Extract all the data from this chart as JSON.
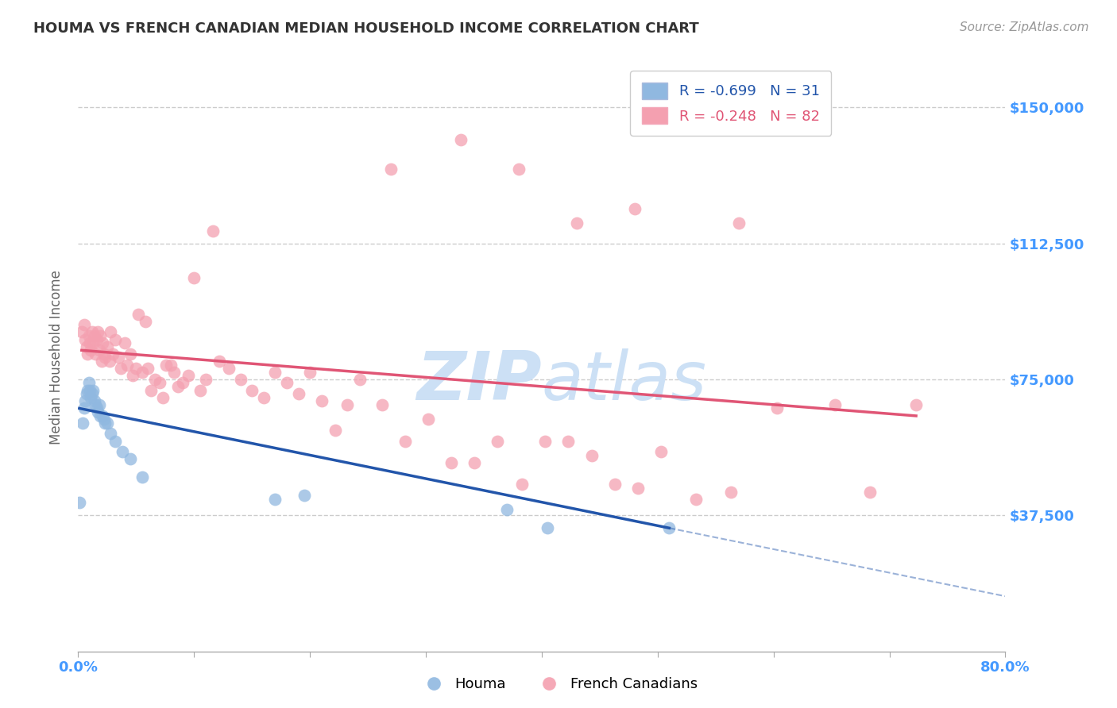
{
  "title": "HOUMA VS FRENCH CANADIAN MEDIAN HOUSEHOLD INCOME CORRELATION CHART",
  "source": "Source: ZipAtlas.com",
  "ylabel": "Median Household Income",
  "yticks": [
    0,
    37500,
    75000,
    112500,
    150000
  ],
  "ytick_labels": [
    "",
    "$37,500",
    "$75,000",
    "$112,500",
    "$150,000"
  ],
  "xmin": 0.0,
  "xmax": 0.8,
  "ymin": 0,
  "ymax": 162000,
  "houma_R": -0.699,
  "houma_N": 31,
  "fc_R": -0.248,
  "fc_N": 82,
  "houma_color": "#90b8e0",
  "fc_color": "#f4a0b0",
  "houma_line_color": "#2255aa",
  "fc_line_color": "#e05575",
  "title_color": "#333333",
  "source_color": "#999999",
  "axis_label_color": "#666666",
  "ytick_color": "#4499ff",
  "xtick_color": "#4499ff",
  "grid_color": "#cccccc",
  "watermark_color": "#cce0f5",
  "houma_x": [
    0.001,
    0.004,
    0.005,
    0.006,
    0.007,
    0.008,
    0.009,
    0.01,
    0.011,
    0.012,
    0.013,
    0.014,
    0.015,
    0.016,
    0.017,
    0.018,
    0.019,
    0.021,
    0.022,
    0.023,
    0.025,
    0.028,
    0.032,
    0.038,
    0.045,
    0.055,
    0.17,
    0.195,
    0.37,
    0.405,
    0.51
  ],
  "houma_y": [
    41000,
    63000,
    67000,
    69000,
    71000,
    72000,
    74000,
    72000,
    70000,
    71000,
    72000,
    69000,
    68000,
    67000,
    66000,
    68000,
    65000,
    65000,
    64000,
    63000,
    63000,
    60000,
    58000,
    55000,
    53000,
    48000,
    42000,
    43000,
    39000,
    34000,
    34000
  ],
  "fc_x": [
    0.003,
    0.005,
    0.006,
    0.007,
    0.008,
    0.009,
    0.01,
    0.011,
    0.012,
    0.013,
    0.014,
    0.015,
    0.016,
    0.017,
    0.018,
    0.019,
    0.02,
    0.021,
    0.022,
    0.023,
    0.025,
    0.027,
    0.028,
    0.03,
    0.032,
    0.035,
    0.037,
    0.04,
    0.042,
    0.045,
    0.047,
    0.05,
    0.052,
    0.055,
    0.058,
    0.06,
    0.063,
    0.066,
    0.07,
    0.073,
    0.076,
    0.08,
    0.083,
    0.086,
    0.09,
    0.095,
    0.1,
    0.105,
    0.11,
    0.116,
    0.122,
    0.13,
    0.14,
    0.15,
    0.16,
    0.17,
    0.18,
    0.19,
    0.2,
    0.21,
    0.222,
    0.232,
    0.243,
    0.262,
    0.282,
    0.302,
    0.322,
    0.342,
    0.362,
    0.383,
    0.403,
    0.423,
    0.443,
    0.463,
    0.483,
    0.503,
    0.533,
    0.563,
    0.603,
    0.653,
    0.683,
    0.723
  ],
  "fc_y": [
    88000,
    90000,
    86000,
    84000,
    82000,
    87000,
    85000,
    83000,
    88000,
    85000,
    87000,
    82000,
    86000,
    88000,
    83000,
    87000,
    80000,
    85000,
    82000,
    81000,
    84000,
    80000,
    88000,
    82000,
    86000,
    81000,
    78000,
    85000,
    79000,
    82000,
    76000,
    78000,
    93000,
    77000,
    91000,
    78000,
    72000,
    75000,
    74000,
    70000,
    79000,
    79000,
    77000,
    73000,
    74000,
    76000,
    103000,
    72000,
    75000,
    116000,
    80000,
    78000,
    75000,
    72000,
    70000,
    77000,
    74000,
    71000,
    77000,
    69000,
    61000,
    68000,
    75000,
    68000,
    58000,
    64000,
    52000,
    52000,
    58000,
    46000,
    58000,
    58000,
    54000,
    46000,
    45000,
    55000,
    42000,
    44000,
    67000,
    68000,
    44000,
    68000
  ],
  "fc_extra_x": [
    0.27,
    0.33,
    0.38,
    0.43,
    0.48,
    0.57
  ],
  "fc_extra_y": [
    133000,
    141000,
    133000,
    118000,
    122000,
    118000
  ],
  "num_xticks": 9
}
